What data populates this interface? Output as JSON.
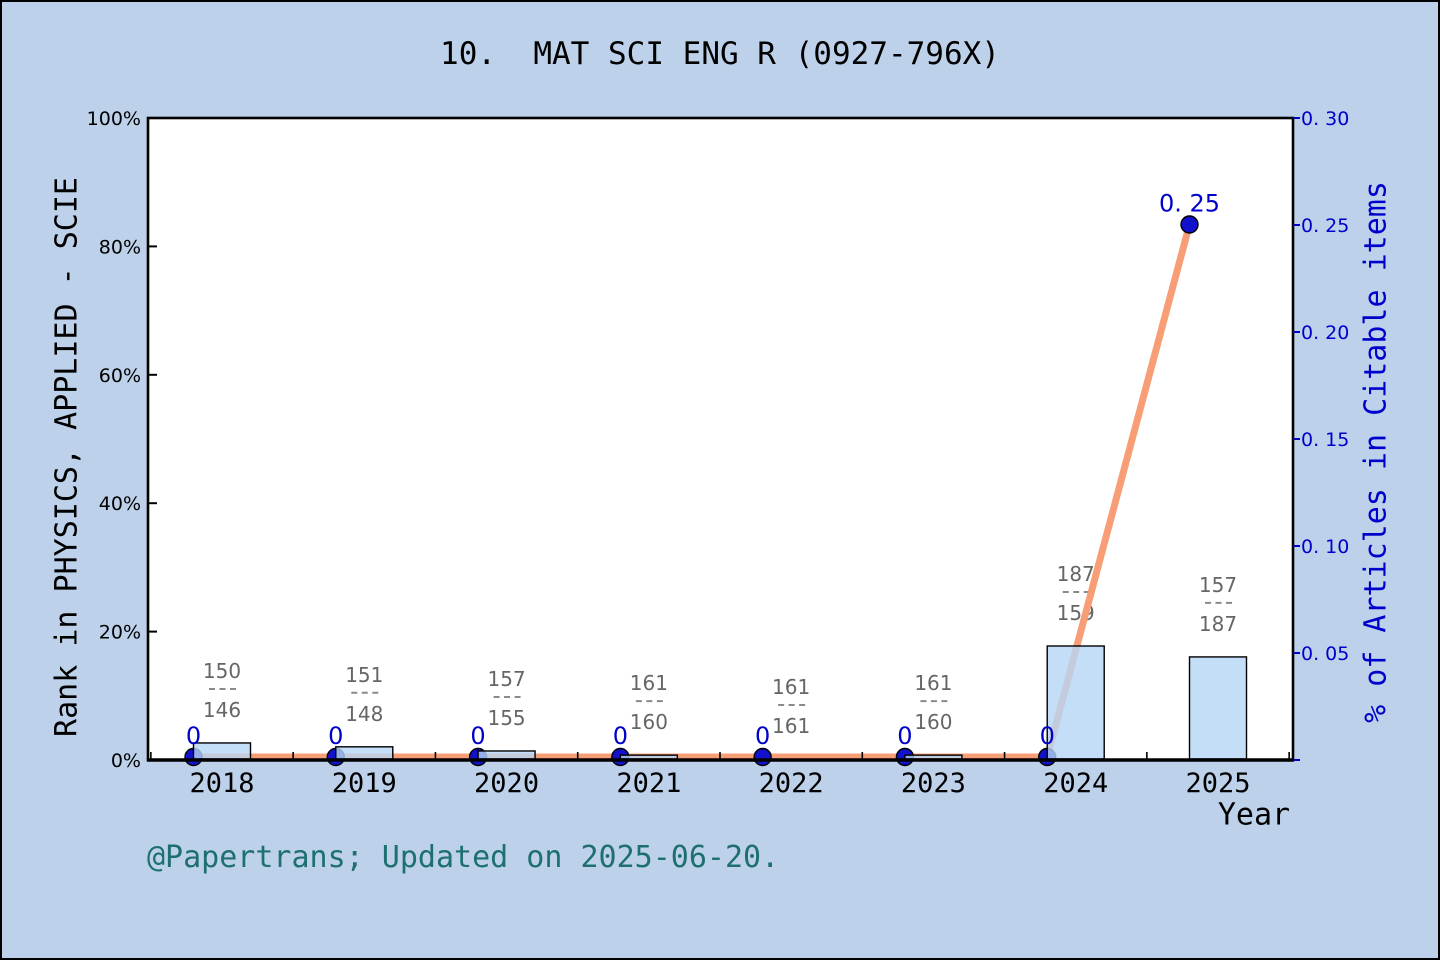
{
  "title": "10.  MAT SCI ENG R (0927-796X)",
  "footer": {
    "credit": "@Papertrans; Updated on 2025-06-20."
  },
  "colors": {
    "page_background": "#bdd2ea",
    "plot_background": "#ffffff",
    "spine": "#000000",
    "bar_fill": "rgba(182,214,246,0.80)",
    "bar_border": "#000000",
    "line": "#f89e76",
    "dot_fill": "#1212cc",
    "dot_border": "#000000",
    "left_tick_text": "#000000",
    "right_tick_text": "#0000cd",
    "point_label_text": "#0000cd",
    "fraction_text": "#666666",
    "fraction_dash": "#8a8a8a",
    "year_text": "#000000",
    "footer_text": "#1e6f6f"
  },
  "chart_data": {
    "type": "bar+line combo",
    "title": "10.  MAT SCI ENG R (0927-796X)",
    "x_axis": {
      "label": "Year",
      "categories": [
        "2018",
        "2019",
        "2020",
        "2021",
        "2022",
        "2023",
        "2024",
        "2025"
      ],
      "minor_ticks_between_years": true
    },
    "left_axis": {
      "label": "Rank in PHYSICS, APPLIED - SCIE",
      "range": [
        0,
        100
      ],
      "unit": "percent",
      "ticks": [
        "0%",
        "20%",
        "40%",
        "60%",
        "80%",
        "100%"
      ],
      "tick_values": [
        0,
        20,
        40,
        60,
        80,
        100
      ]
    },
    "right_axis": {
      "label": "% of Articles in Citable items",
      "range": [
        0,
        0.3
      ],
      "ticks": [
        "0. 05",
        "0. 10",
        "0. 15",
        "0. 20",
        "0. 25",
        "0. 30"
      ],
      "tick_values": [
        0.05,
        0.1,
        0.15,
        0.2,
        0.25,
        0.3
      ]
    },
    "bars": {
      "name": "rank-percentile-bars",
      "axis": "left",
      "values_percent": [
        2.5,
        1.9,
        1.25,
        0.6,
        0,
        0.6,
        17.6,
        15.9
      ],
      "fraction_labels": [
        {
          "top": "150",
          "bottom": "146"
        },
        {
          "top": "151",
          "bottom": "148"
        },
        {
          "top": "157",
          "bottom": "155"
        },
        {
          "top": "161",
          "bottom": "160"
        },
        {
          "top": "161",
          "bottom": "161"
        },
        {
          "top": "161",
          "bottom": "160"
        },
        {
          "top": "187",
          "bottom": "159"
        },
        {
          "top": "157",
          "bottom": "187"
        }
      ]
    },
    "line": {
      "name": "articles-in-citable-items",
      "axis": "right",
      "values": [
        0,
        0,
        0,
        0,
        0,
        0,
        0,
        0.25
      ],
      "point_labels": [
        "0",
        "0",
        "0",
        "0",
        "0",
        "0",
        "0",
        "0. 25"
      ]
    },
    "legend": "none",
    "grid": "off"
  }
}
